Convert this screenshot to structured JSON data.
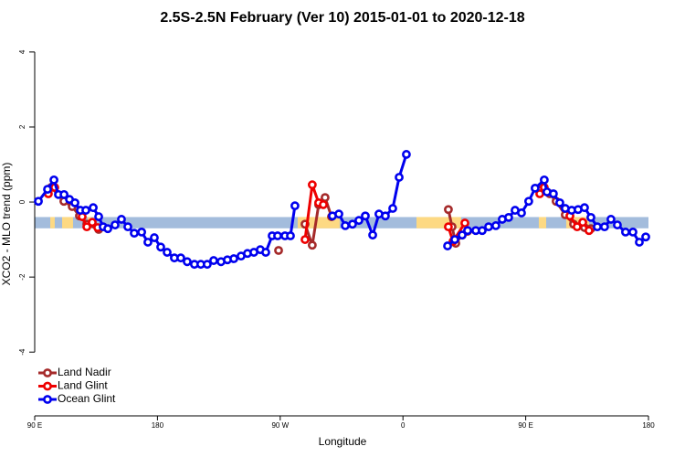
{
  "chart_data": {
    "type": "line",
    "title": "2.5S-2.5N February (Ver 10)   2015-01-01 to 2020-12-18",
    "x_label": "Longitude",
    "y_label": "XCO2 - MLO trend (ppm)",
    "xlim": [
      90,
      540
    ],
    "ylim": [
      -5.7,
      4.46
    ],
    "xticks": [
      {
        "value": 90,
        "label": "90 E"
      },
      {
        "value": 180,
        "label": "180"
      },
      {
        "value": 270,
        "label": "90 W"
      },
      {
        "value": 360,
        "label": "0"
      },
      {
        "value": 450,
        "label": "90 E"
      },
      {
        "value": 540,
        "label": "180"
      }
    ],
    "yticks": [
      4,
      2,
      0,
      -2,
      -4
    ],
    "legend_position": "bottom-left",
    "band": {
      "ylim": [
        -0.7,
        -0.4
      ],
      "color": "#a3bcdc",
      "land_color": "#fdd983",
      "land_x": [
        [
          101.4,
          104.7
        ],
        [
          110.1,
          118.1
        ],
        [
          128.8,
          131.5
        ],
        [
          282.8,
          313.6
        ],
        [
          369.9,
          402.7
        ],
        [
          459.6,
          465.0
        ],
        [
          479.7,
          496.4
        ]
      ]
    },
    "series": [
      {
        "name": "Land Nadir",
        "color": "#a52a2a",
        "x": [
          102.1,
          111.4,
          117.5,
          122.8,
          128.2,
          136.9,
          null,
          268.8,
          null,
          288.2,
          293.5,
          298.2,
          302.9,
          307.6,
          null,
          393.3,
          396.0,
          398.7,
          403.4,
          407.4,
          null,
          460.9,
          467.6,
          472.3,
          479.0,
          485.1,
          493.1,
          497.8
        ],
        "values": [
          0.39,
          0.02,
          -0.12,
          -0.37,
          -0.59,
          -0.73,
          null,
          -1.29,
          null,
          -0.59,
          -1.15,
          -0.07,
          0.12,
          -0.39,
          null,
          -0.2,
          -0.66,
          -1.1,
          -0.88,
          -0.78,
          null,
          0.32,
          0.22,
          0.02,
          -0.34,
          -0.59,
          -0.68,
          -0.71
        ]
      },
      {
        "name": "Land Glint",
        "color": "#ee0000",
        "x": [
          100.0,
          104.7,
          null,
          124.8,
          128.2,
          132.2,
          136.2,
          null,
          288.2,
          293.5,
          298.2,
          301.6,
          null,
          393.3,
          396.7,
          405.4,
          null,
          460.3,
          463.6,
          null,
          482.4,
          487.7,
          491.8,
          496.4
        ],
        "values": [
          0.22,
          0.39,
          null,
          -0.39,
          -0.66,
          -0.54,
          -0.68,
          null,
          -1.0,
          0.46,
          -0.02,
          -0.07,
          null,
          -0.66,
          -1.05,
          -0.56,
          null,
          0.22,
          0.39,
          null,
          -0.37,
          -0.66,
          -0.54,
          -0.76
        ]
      },
      {
        "name": "Ocean Glint",
        "color": "#0000ee",
        "x": [
          92.7,
          99.4,
          104.1,
          107.4,
          111.5,
          115.5,
          119.5,
          123.5,
          127.5,
          132.9,
          136.9,
          140.2,
          143.6,
          148.9,
          153.6,
          158.3,
          163.0,
          168.4,
          173.0,
          177.7,
          182.4,
          187.1,
          192.4,
          197.1,
          201.8,
          207.1,
          211.8,
          216.5,
          221.2,
          226.6,
          231.3,
          236.0,
          241.3,
          246.0,
          250.7,
          255.4,
          259.4,
          264.1,
          268.1,
          273.5,
          277.5,
          280.8,
          null,
          308.3,
          313.0,
          317.7,
          323.0,
          327.7,
          332.4,
          337.8,
          342.4,
          347.1,
          352.5,
          357.2,
          362.5,
          null,
          392.7,
          398.0,
          403.4,
          407.4,
          413.4,
          418.1,
          422.8,
          428.1,
          432.8,
          437.5,
          442.2,
          446.9,
          452.2,
          456.9,
          463.6,
          465.6,
          470.3,
          475.0,
          479.0,
          483.7,
          488.4,
          493.1,
          497.8,
          502.5,
          507.8,
          512.5,
          517.2,
          523.2,
          528.6,
          533.3,
          538.0
        ],
        "values": [
          0.02,
          0.34,
          0.59,
          0.2,
          0.2,
          0.07,
          -0.02,
          -0.22,
          -0.22,
          -0.15,
          -0.39,
          -0.66,
          -0.71,
          -0.61,
          -0.46,
          -0.66,
          -0.83,
          -0.8,
          -1.07,
          -0.95,
          -1.2,
          -1.34,
          -1.49,
          -1.49,
          -1.59,
          -1.66,
          -1.66,
          -1.66,
          -1.56,
          -1.59,
          -1.54,
          -1.51,
          -1.44,
          -1.37,
          -1.34,
          -1.27,
          -1.34,
          -0.9,
          -0.9,
          -0.9,
          -0.9,
          -0.1,
          null,
          -0.37,
          -0.32,
          -0.63,
          -0.59,
          -0.49,
          -0.37,
          -0.88,
          -0.32,
          -0.37,
          -0.17,
          0.66,
          1.27,
          null,
          -1.17,
          -1.0,
          -0.88,
          -0.76,
          -0.76,
          -0.76,
          -0.66,
          -0.63,
          -0.46,
          -0.41,
          -0.22,
          -0.29,
          0.02,
          0.37,
          0.59,
          0.27,
          0.22,
          -0.02,
          -0.17,
          -0.22,
          -0.2,
          -0.15,
          -0.41,
          -0.66,
          -0.66,
          -0.46,
          -0.61,
          -0.8,
          -0.8,
          -1.07,
          -0.93
        ]
      }
    ]
  }
}
